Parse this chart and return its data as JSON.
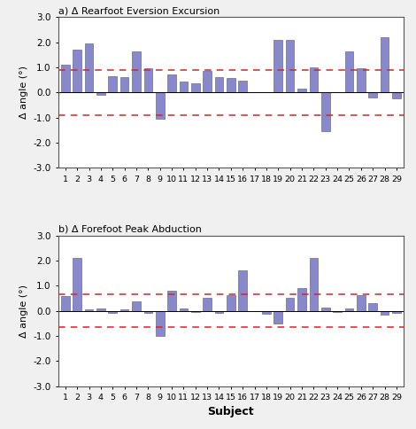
{
  "title_a": "a) Δ Rearfoot Eversion Excursion",
  "title_b": "b) Δ Forefoot Peak Abduction",
  "xlabel": "Subject",
  "ylabel": "Δ angle (°)",
  "subjects": [
    1,
    2,
    3,
    4,
    5,
    6,
    7,
    8,
    9,
    10,
    11,
    12,
    13,
    14,
    15,
    16,
    17,
    18,
    19,
    20,
    21,
    22,
    23,
    24,
    25,
    26,
    27,
    28,
    29
  ],
  "values_a": [
    1.1,
    1.7,
    1.95,
    -0.1,
    0.65,
    0.6,
    1.65,
    0.95,
    -1.05,
    0.72,
    0.45,
    0.38,
    0.85,
    0.6,
    0.58,
    0.47,
    0.0,
    0.0,
    2.08,
    2.1,
    0.15,
    1.0,
    -1.55,
    0.0,
    1.65,
    0.95,
    -0.2,
    2.2,
    -0.25
  ],
  "values_b": [
    0.58,
    2.1,
    0.05,
    0.1,
    -0.1,
    0.05,
    0.38,
    -0.08,
    -1.0,
    0.8,
    0.08,
    -0.05,
    0.5,
    -0.1,
    0.62,
    1.6,
    0.0,
    -0.12,
    -0.5,
    0.5,
    0.9,
    2.1,
    0.12,
    -0.05,
    0.1,
    0.62,
    0.3,
    -0.15,
    -0.1
  ],
  "dashed_line_a": [
    0.9,
    -0.9
  ],
  "dashed_line_b": [
    0.65,
    -0.65
  ],
  "bar_color": "#8888cc",
  "bar_edge_color": "#555577",
  "dashed_color": "#dd2222",
  "ylim": [
    -3.0,
    3.0
  ],
  "yticks": [
    -3.0,
    -2.0,
    -1.0,
    0.0,
    1.0,
    2.0,
    3.0
  ],
  "figure_bg": "#f0f0f0",
  "axes_bg": "#ffffff"
}
